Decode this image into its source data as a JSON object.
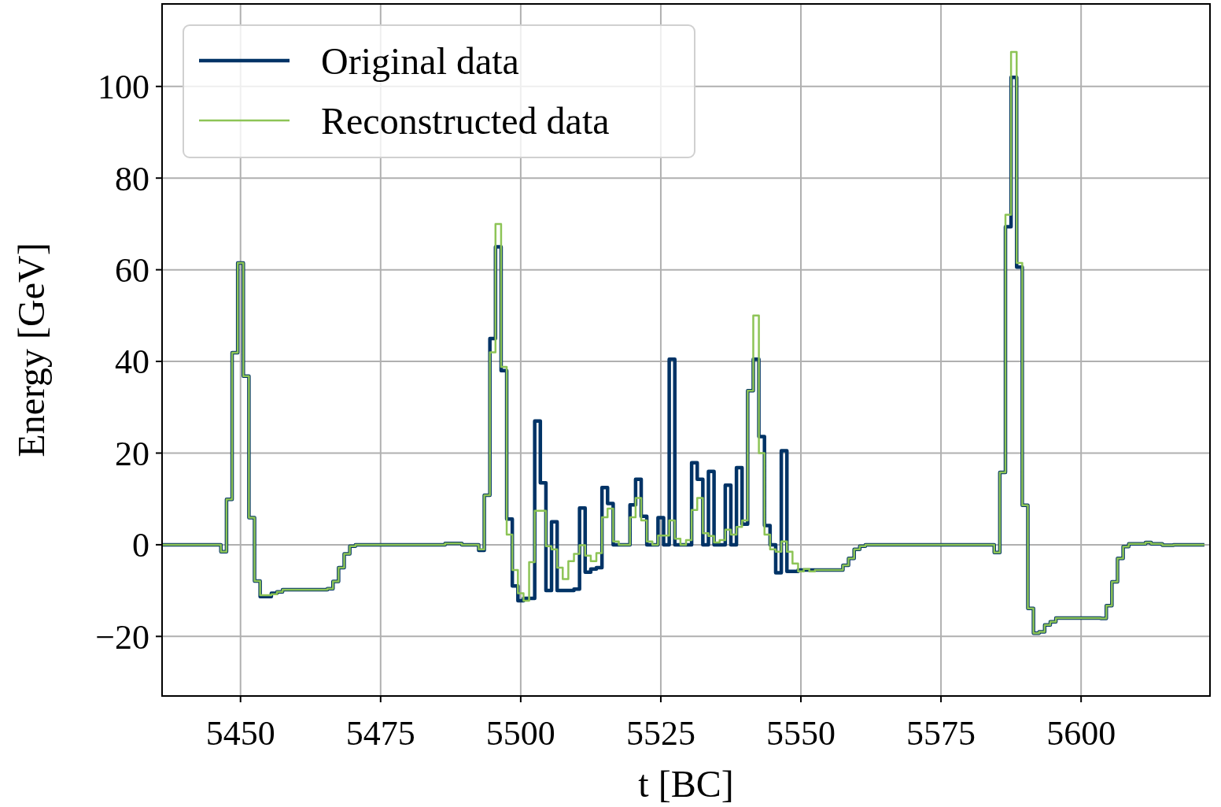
{
  "chart_data": {
    "type": "step",
    "xlabel": "t [BC]",
    "ylabel": "Energy [GeV]",
    "xlim": [
      5436,
      5623
    ],
    "ylim": [
      -33,
      118
    ],
    "xticks": [
      5450,
      5475,
      5500,
      5525,
      5550,
      5575,
      5600
    ],
    "yticks": [
      {
        "value": -20,
        "label": "−20"
      },
      0,
      20,
      40,
      60,
      80,
      100
    ],
    "grid": true,
    "legend": "top left",
    "x": [
      5436,
      5437,
      5438,
      5439,
      5440,
      5441,
      5442,
      5443,
      5444,
      5445,
      5446,
      5447,
      5448,
      5449,
      5450,
      5451,
      5452,
      5453,
      5454,
      5455,
      5456,
      5457,
      5458,
      5459,
      5460,
      5461,
      5462,
      5463,
      5464,
      5465,
      5466,
      5467,
      5468,
      5469,
      5470,
      5471,
      5472,
      5473,
      5474,
      5475,
      5476,
      5477,
      5478,
      5479,
      5480,
      5481,
      5482,
      5483,
      5484,
      5485,
      5486,
      5487,
      5488,
      5489,
      5490,
      5491,
      5492,
      5493,
      5494,
      5495,
      5496,
      5497,
      5498,
      5499,
      5500,
      5501,
      5502,
      5503,
      5504,
      5505,
      5506,
      5507,
      5508,
      5509,
      5510,
      5511,
      5512,
      5513,
      5514,
      5515,
      5516,
      5517,
      5518,
      5519,
      5520,
      5521,
      5522,
      5523,
      5524,
      5525,
      5526,
      5527,
      5528,
      5529,
      5530,
      5531,
      5532,
      5533,
      5534,
      5535,
      5536,
      5537,
      5538,
      5539,
      5540,
      5541,
      5542,
      5543,
      5544,
      5545,
      5546,
      5547,
      5548,
      5549,
      5550,
      5551,
      5552,
      5553,
      5554,
      5555,
      5556,
      5557,
      5558,
      5559,
      5560,
      5561,
      5562,
      5563,
      5564,
      5565,
      5566,
      5567,
      5568,
      5569,
      5570,
      5571,
      5572,
      5573,
      5574,
      5575,
      5576,
      5577,
      5578,
      5579,
      5580,
      5581,
      5582,
      5583,
      5584,
      5585,
      5586,
      5587,
      5588,
      5589,
      5590,
      5591,
      5592,
      5593,
      5594,
      5595,
      5596,
      5597,
      5598,
      5599,
      5600,
      5601,
      5602,
      5603,
      5604,
      5605,
      5606,
      5607,
      5608,
      5609,
      5610,
      5611,
      5612,
      5613,
      5614,
      5615,
      5616,
      5617,
      5618,
      5619,
      5620,
      5621,
      5622
    ],
    "series": [
      {
        "name": "Original data",
        "color": "#003366",
        "values": [
          0,
          0,
          0,
          0,
          0,
          0,
          0,
          0,
          0,
          0,
          0,
          -1.5,
          9.9,
          41.9,
          61.5,
          36.8,
          5.9,
          -7.9,
          -11.3,
          -11.3,
          -10.6,
          -10.3,
          -9.8,
          -9.8,
          -9.8,
          -9.8,
          -9.8,
          -9.8,
          -9.8,
          -9.8,
          -9.6,
          -8,
          -5,
          -2,
          -0.3,
          0,
          0,
          0,
          0,
          0,
          0,
          0,
          0,
          0,
          0,
          0,
          0,
          0,
          0,
          0,
          0,
          0.3,
          0.3,
          0.3,
          0,
          0,
          0,
          -1.2,
          10.8,
          45,
          65,
          38,
          5.6,
          -9,
          -12.2,
          -11.7,
          -11.7,
          27,
          13.5,
          -10,
          5,
          -10,
          -10,
          -10,
          -9.7,
          8,
          -6,
          -5.3,
          -5,
          12.5,
          9,
          0,
          0,
          0,
          8.7,
          14.3,
          6.2,
          0,
          0,
          5.9,
          0,
          40.5,
          0,
          0,
          0,
          17.9,
          14.3,
          0,
          16,
          0,
          0,
          13,
          0,
          16.8,
          4.5,
          33.6,
          40.5,
          23.6,
          4.2,
          0,
          -6.1,
          20.5,
          -5.8,
          -5.8,
          -5.5,
          -5.5,
          -5.5,
          -5.5,
          -5.5,
          -5.5,
          -5.5,
          -5.5,
          -4.5,
          -3,
          -1,
          -0.3,
          0,
          0,
          0,
          0,
          0,
          0,
          0,
          0,
          0,
          0,
          0,
          0,
          0,
          0,
          0,
          0,
          0,
          0,
          0,
          0,
          0,
          0,
          0,
          -1.7,
          15.8,
          69.4,
          102,
          60.6,
          8.6,
          -13.9,
          -19.3,
          -19,
          -17.5,
          -16.8,
          -16,
          -16,
          -16,
          -16,
          -16,
          -16,
          -16,
          -16,
          -16.1,
          -13.3,
          -8.1,
          -3,
          -0.4,
          0.2,
          0.2,
          0.2,
          0.5,
          0.2,
          0.2,
          -0.1,
          -0.1,
          0,
          0,
          0,
          0,
          0,
          0
        ]
      },
      {
        "name": "Reconstructed data",
        "color": "#8dc456",
        "values": [
          0,
          0,
          0,
          0,
          0,
          0,
          0,
          0,
          0,
          0,
          0,
          -1.5,
          9.9,
          41.9,
          61.5,
          36.8,
          5.9,
          -7.9,
          -11,
          -11,
          -10.8,
          -10.3,
          -9.8,
          -9.8,
          -9.8,
          -9.8,
          -9.8,
          -9.8,
          -9.8,
          -9.8,
          -9.6,
          -8,
          -5,
          -2,
          -0.3,
          0,
          0,
          0,
          0,
          0,
          0,
          0,
          0,
          0,
          0,
          0,
          0,
          0,
          0,
          0,
          0,
          0.3,
          0.3,
          0.3,
          0,
          0,
          0,
          -1,
          10.8,
          42,
          70,
          38.8,
          2.2,
          -5.5,
          -10.6,
          -12.2,
          -3.8,
          7.4,
          7.4,
          -0.3,
          -1,
          -5,
          -7.5,
          -3.6,
          -2,
          -0.1,
          -2.4,
          -3.6,
          -1.8,
          6,
          7.9,
          0.7,
          0,
          0,
          6,
          10.2,
          5.3,
          0.7,
          0,
          2,
          2,
          5.3,
          1.3,
          0,
          1,
          7.6,
          10.2,
          2.5,
          1.9,
          0.5,
          1,
          3.3,
          2.2,
          3.9,
          5.3,
          33.6,
          50,
          20,
          2.2,
          -1,
          -1.5,
          0.7,
          -1.5,
          -4.1,
          -5.8,
          -5.3,
          -5.8,
          -5.5,
          -5.5,
          -5.5,
          -5.5,
          -5.5,
          -4.5,
          -3,
          -1,
          -0.3,
          0,
          0,
          0,
          0,
          0,
          0,
          0,
          0,
          0,
          0,
          0,
          0,
          0,
          0,
          0,
          0,
          0,
          0,
          0,
          0,
          0,
          0,
          0,
          -1.7,
          15.8,
          72,
          107.5,
          61.5,
          8.6,
          -13.9,
          -19.3,
          -19,
          -17.5,
          -16.8,
          -16,
          -16,
          -16,
          -16,
          -16,
          -16,
          -16,
          -16,
          -16.1,
          -13.3,
          -8.1,
          -3,
          -0.4,
          0.2,
          0.2,
          0.2,
          0.5,
          0.2,
          0.2,
          -0.1,
          -0.1,
          0,
          0,
          0,
          0,
          0,
          0
        ]
      }
    ]
  }
}
